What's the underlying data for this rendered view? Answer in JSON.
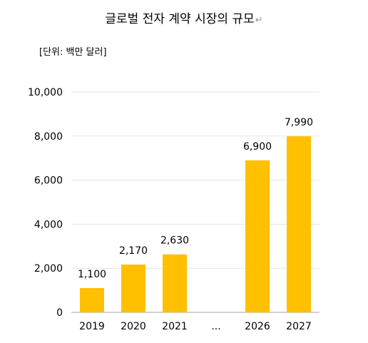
{
  "chart_data": {
    "type": "bar",
    "title": "글로벌 전자 계약 시장의 규모",
    "title_mark": "↵",
    "unit_label": "[단위: 백만 달러]",
    "categories": [
      "2019",
      "2020",
      "2021",
      "...",
      "2026",
      "2027"
    ],
    "values": [
      1100,
      2170,
      2630,
      null,
      6900,
      7990
    ],
    "data_labels": [
      "1,100",
      "2,170",
      "2,630",
      "",
      "6,900",
      "7,990"
    ],
    "y_ticks": [
      0,
      2000,
      4000,
      6000,
      8000,
      10000
    ],
    "y_tick_labels": [
      "0",
      "2,000",
      "4,000",
      "6,000",
      "8,000",
      "10,000"
    ],
    "ylim": [
      0,
      10000
    ],
    "grid": true,
    "bar_color": "#FFC000"
  }
}
